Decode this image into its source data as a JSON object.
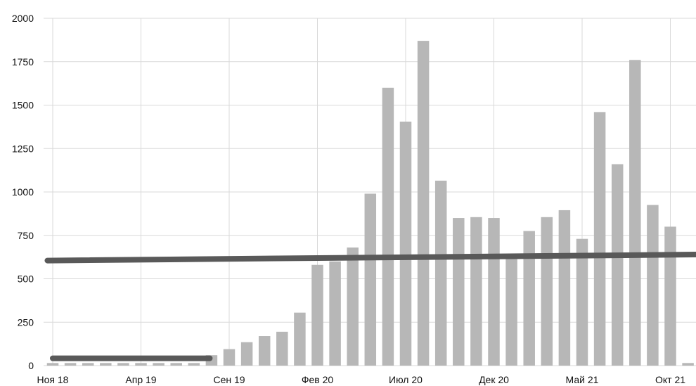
{
  "chart_data": {
    "type": "bar",
    "title": "",
    "xlabel": "",
    "ylabel": "",
    "ylim": [
      0,
      2000
    ],
    "yticks": [
      0,
      250,
      500,
      750,
      1000,
      1250,
      1500,
      1750,
      2000
    ],
    "ytick_labels": [
      "0",
      "250",
      "500",
      "750",
      "1000",
      "1250",
      "1500",
      "1750",
      "2000"
    ],
    "xtick_labels": [
      "Ноя 18",
      "Апр 19",
      "Сен 19",
      "Фев 20",
      "Июл 20",
      "Дек 20",
      "Май 21",
      "Окт 21"
    ],
    "xtick_every": 5,
    "grid": true,
    "bar_color": "#b7b7b7",
    "line_color": "#595959",
    "series": [
      {
        "type": "bar",
        "values": [
          15,
          15,
          15,
          15,
          15,
          15,
          15,
          15,
          15,
          60,
          95,
          135,
          170,
          195,
          305,
          580,
          600,
          680,
          990,
          1600,
          1405,
          1870,
          1065,
          850,
          855,
          850,
          620,
          775,
          855,
          895,
          730,
          1460,
          1160,
          1760,
          925,
          800,
          15
        ]
      }
    ],
    "trend_lines": [
      {
        "x_start": 0,
        "x_end": 8.9,
        "y_start": 42,
        "y_end": 42
      },
      {
        "x_start": -0.3,
        "x_end": 37,
        "y_start": 605,
        "y_end": 640
      }
    ]
  }
}
